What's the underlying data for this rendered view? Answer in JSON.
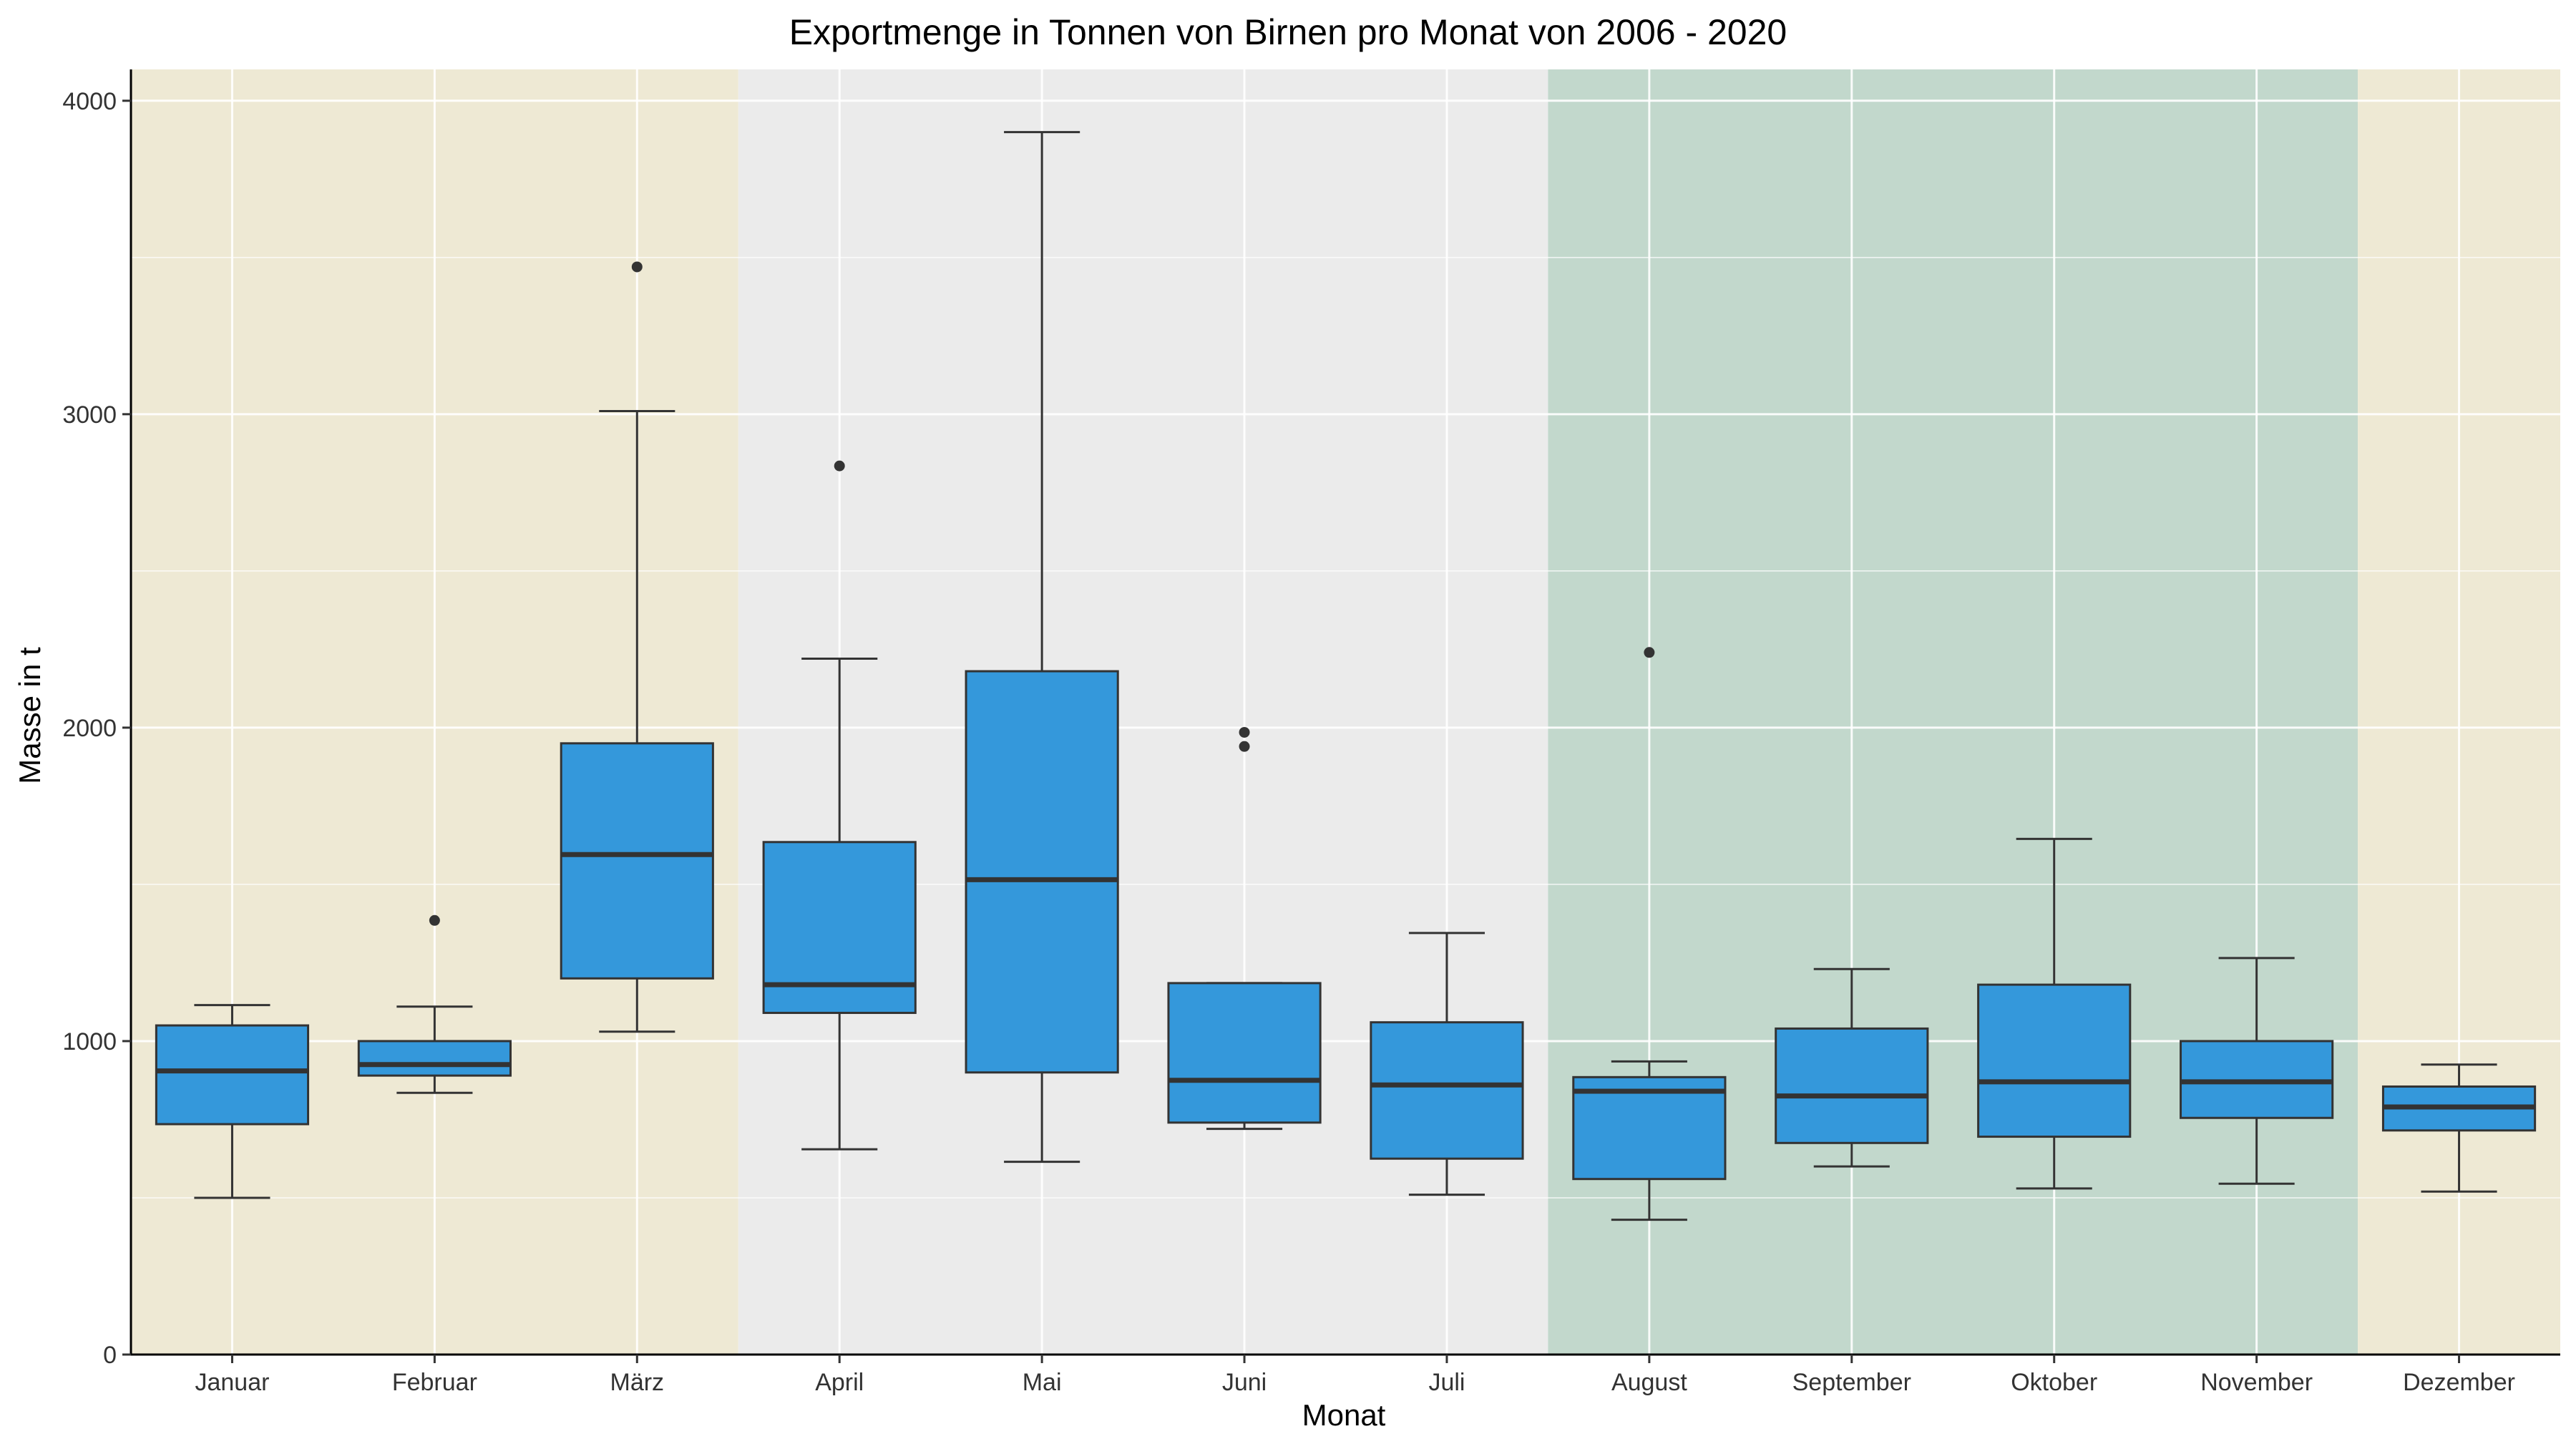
{
  "chart_data": {
    "type": "box",
    "title": "Exportmenge in Tonnen von Birnen pro Monat von 2006 - 2020",
    "xlabel": "Monat",
    "ylabel": "Masse in t",
    "ylim": [
      0,
      4100
    ],
    "yticks": [
      0,
      1000,
      2000,
      3000,
      4000
    ],
    "ytick_labels": [
      "0",
      "1000",
      "2000",
      "3000",
      "4000"
    ],
    "grid": true,
    "box_color": "#3498DB",
    "line_color": "#333333",
    "seasons": [
      {
        "start": "Januar",
        "end": "März",
        "color": "#EEE9D4"
      },
      {
        "start": "April",
        "end": "Juli",
        "color": "#EBEBEB"
      },
      {
        "start": "August",
        "end": "November",
        "color": "#C2D8CC"
      },
      {
        "start": "Dezember",
        "end": "Dezember",
        "color": "#EEE9D4"
      }
    ],
    "categories": [
      "Januar",
      "Februar",
      "März",
      "April",
      "Mai",
      "Juni",
      "Juli",
      "August",
      "September",
      "Oktober",
      "November",
      "Dezember"
    ],
    "boxes": [
      {
        "whisker_low": 500,
        "q1": 735,
        "median": 905,
        "q3": 1050,
        "whisker_high": 1115,
        "outliers": []
      },
      {
        "whisker_low": 835,
        "q1": 890,
        "median": 925,
        "q3": 1000,
        "whisker_high": 1110,
        "outliers": [
          1385
        ]
      },
      {
        "whisker_low": 1030,
        "q1": 1200,
        "median": 1595,
        "q3": 1950,
        "whisker_high": 3010,
        "outliers": [
          3470
        ]
      },
      {
        "whisker_low": 655,
        "q1": 1090,
        "median": 1180,
        "q3": 1635,
        "whisker_high": 2220,
        "outliers": [
          2835
        ]
      },
      {
        "whisker_low": 615,
        "q1": 900,
        "median": 1515,
        "q3": 2180,
        "whisker_high": 3900,
        "outliers": []
      },
      {
        "whisker_low": 720,
        "q1": 740,
        "median": 875,
        "q3": 1185,
        "whisker_high": 1185,
        "outliers": [
          1940,
          1985
        ]
      },
      {
        "whisker_low": 510,
        "q1": 625,
        "median": 860,
        "q3": 1060,
        "whisker_high": 1345,
        "outliers": []
      },
      {
        "whisker_low": 430,
        "q1": 560,
        "median": 840,
        "q3": 885,
        "whisker_high": 935,
        "outliers": [
          2240
        ]
      },
      {
        "whisker_low": 600,
        "q1": 675,
        "median": 825,
        "q3": 1040,
        "whisker_high": 1230,
        "outliers": []
      },
      {
        "whisker_low": 530,
        "q1": 695,
        "median": 870,
        "q3": 1180,
        "whisker_high": 1645,
        "outliers": []
      },
      {
        "whisker_low": 545,
        "q1": 755,
        "median": 870,
        "q3": 1000,
        "whisker_high": 1265,
        "outliers": []
      },
      {
        "whisker_low": 520,
        "q1": 715,
        "median": 790,
        "q3": 855,
        "whisker_high": 925,
        "outliers": []
      }
    ]
  }
}
